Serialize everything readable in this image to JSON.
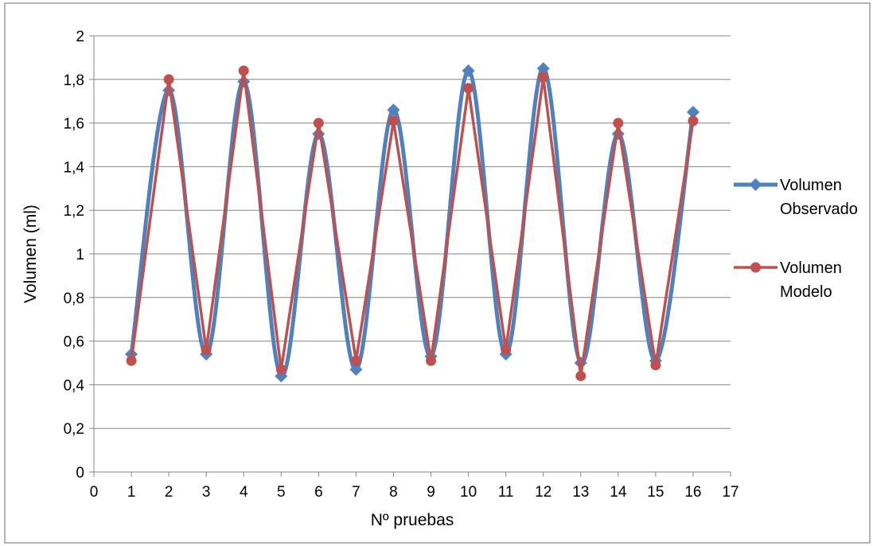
{
  "chart_data": {
    "type": "line",
    "title": "",
    "xlabel": "Nº  pruebas",
    "ylabel": "Volumen (ml)",
    "xlim": [
      0,
      17
    ],
    "ylim": [
      0,
      2
    ],
    "x_ticks": [
      "0",
      "1",
      "2",
      "3",
      "4",
      "5",
      "6",
      "7",
      "8",
      "9",
      "10",
      "11",
      "12",
      "13",
      "14",
      "15",
      "16",
      "17"
    ],
    "y_ticks": [
      "0",
      "0,2",
      "0,4",
      "0,6",
      "0,8",
      "1",
      "1,2",
      "1,4",
      "1,6",
      "1,8",
      "2"
    ],
    "grid": "horizontal",
    "legend_position": "right",
    "x": [
      1,
      2,
      3,
      4,
      5,
      6,
      7,
      8,
      9,
      10,
      11,
      12,
      13,
      14,
      15,
      16
    ],
    "series": [
      {
        "name": "Volumen Observado",
        "legend_lines": [
          "Volumen",
          "Observado"
        ],
        "color": "#4F81BD",
        "marker": "diamond",
        "smooth": true,
        "values": [
          0.54,
          1.75,
          0.54,
          1.79,
          0.44,
          1.55,
          0.47,
          1.66,
          0.53,
          1.84,
          0.54,
          1.85,
          0.5,
          1.55,
          0.51,
          1.65
        ]
      },
      {
        "name": "Volumen Modelo",
        "legend_lines": [
          "Volumen",
          "Modelo"
        ],
        "color": "#C0504D",
        "marker": "circle",
        "smooth": false,
        "values": [
          0.51,
          1.8,
          0.56,
          1.84,
          0.47,
          1.6,
          0.51,
          1.61,
          0.51,
          1.76,
          0.56,
          1.81,
          0.44,
          1.6,
          0.49,
          1.61
        ]
      }
    ]
  }
}
